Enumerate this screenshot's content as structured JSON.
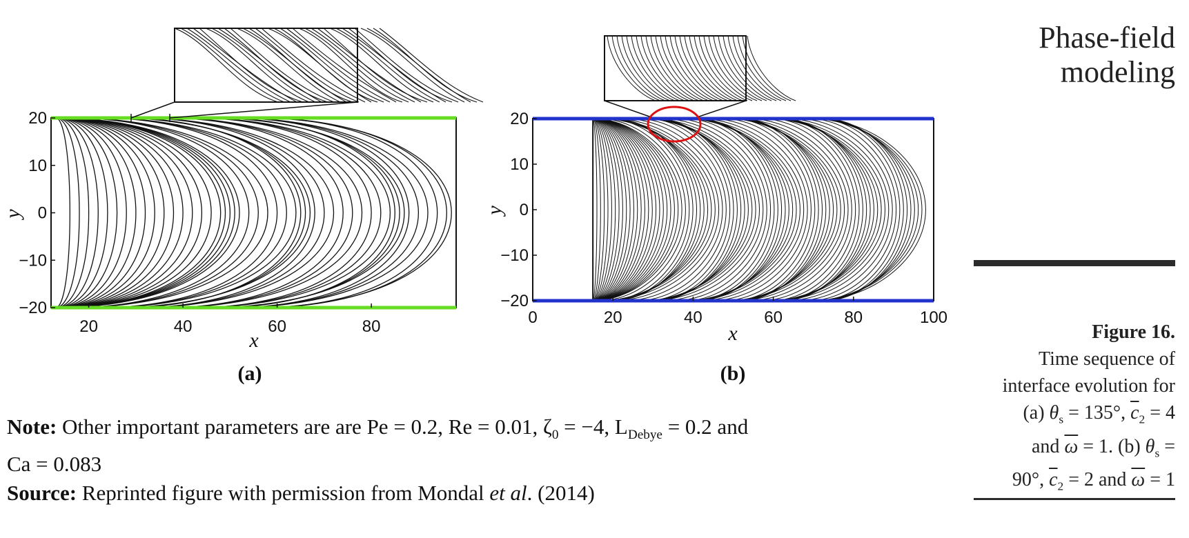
{
  "header": {
    "title_line1": "Phase-field",
    "title_line2": "modeling"
  },
  "caption": {
    "figure_number": "Figure 16.",
    "text_line1": "Time sequence of",
    "text_line2": "interface evolution for",
    "a_prefix": "(a) ",
    "theta_s": "θ",
    "s_sub": "s",
    "a_eq1": " = 135°, ",
    "c_bar": "c",
    "two_sub": "2",
    "a_eq2": " = 4",
    "and_word": "and ",
    "omega_bar": "ω",
    "a_eq3": " = 1. (b) ",
    "b_eq1": " =",
    "b_eq2": "90°, ",
    "b_eq3": " = 2 and ",
    "b_eq4": " = 1"
  },
  "notes": {
    "note_label": "Note:",
    "note_text": " Other important parameters are are Pe = 0.2, Re = 0.01, ζ",
    "zeta_sub": "0",
    "note_text2": " = −4, L",
    "debye_sub": "Debye",
    "note_text3": " = 0.2 and",
    "note_line2": "Ca = 0.083",
    "source_label": "Source:",
    "source_text": " Reprinted figure with permission from Mondal ",
    "source_etal": "et al",
    "source_text2": ". (2014)"
  },
  "colors": {
    "panel_a_walls": "#66dd22",
    "panel_b_walls": "#2233cc",
    "highlight_ellipse": "#dd1111"
  },
  "chart_data": [
    {
      "type": "line",
      "panel": "(a)",
      "title": "",
      "xlabel": "x",
      "ylabel": "y",
      "xlim": [
        12,
        98
      ],
      "ylim": [
        -20,
        20
      ],
      "x_ticks": [
        "20",
        "40",
        "60",
        "80"
      ],
      "y_ticks": [
        "20",
        "10",
        "0",
        "−10",
        "−20"
      ],
      "wall_color": "green",
      "interface_contours_front_x": [
        16,
        18,
        20,
        22,
        24,
        26,
        28,
        30,
        32,
        34,
        36,
        38,
        40,
        42,
        44,
        46,
        48,
        49,
        50,
        51,
        52,
        54,
        56,
        58,
        60,
        62,
        64,
        65,
        66,
        67,
        68,
        70,
        72,
        74,
        76,
        78,
        80,
        82,
        84,
        85,
        86,
        87,
        88,
        90,
        92,
        94,
        96,
        97
      ],
      "contact_line_start_x": 13,
      "inset": "zoom of top wall contact line"
    },
    {
      "type": "line",
      "panel": "(b)",
      "title": "",
      "xlabel": "x",
      "ylabel": "y",
      "xlim": [
        0,
        100
      ],
      "ylim": [
        -20,
        20
      ],
      "x_ticks": [
        "0",
        "20",
        "40",
        "60",
        "80",
        "100"
      ],
      "y_ticks": [
        "20",
        "10",
        "0",
        "−10",
        "−20"
      ],
      "wall_color": "blue",
      "interface_contour_count": 90,
      "interface_front_x_range": [
        16,
        98
      ],
      "contact_line_start_x": 15,
      "highlight": "red ellipse at x≈35, y≈20",
      "inset": "zoom of contact line region"
    }
  ]
}
